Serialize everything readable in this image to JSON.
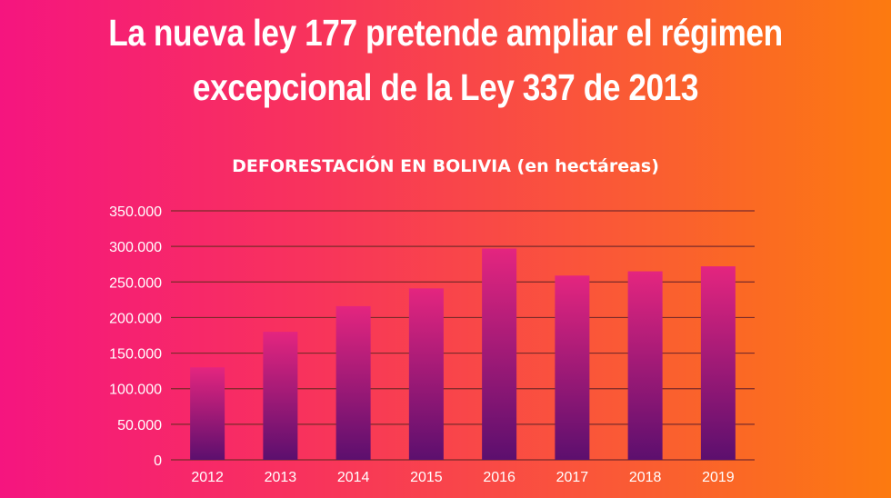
{
  "headline": {
    "line1": "La nueva ley 177 pretende ampliar el régimen",
    "line2": "excepcional de la Ley 337 de 2013"
  },
  "colors": {
    "background_left": "#f5157f",
    "background_right": "#fc7a10",
    "bar_top": "#e4257f",
    "bar_bottom": "#5c0f6e",
    "gridline": "#7a2a2a",
    "text": "#ffffff"
  },
  "chart_data": {
    "type": "bar",
    "title": "DEFORESTACIÓN EN BOLIVIA (en hectáreas)",
    "xlabel": "",
    "ylabel": "",
    "categories": [
      "2012",
      "2013",
      "2014",
      "2015",
      "2016",
      "2017",
      "2018",
      "2019"
    ],
    "values": [
      130000,
      180000,
      216000,
      241000,
      297000,
      259000,
      265000,
      272000
    ],
    "ylim": [
      0,
      350000
    ],
    "yticks": [
      0,
      50000,
      100000,
      150000,
      200000,
      250000,
      300000,
      350000
    ],
    "ytick_labels": [
      "0",
      "50.000",
      "100.000",
      "150.000",
      "200.000",
      "250.000",
      "300.000",
      "350.000"
    ],
    "grid": true,
    "legend": "none"
  }
}
